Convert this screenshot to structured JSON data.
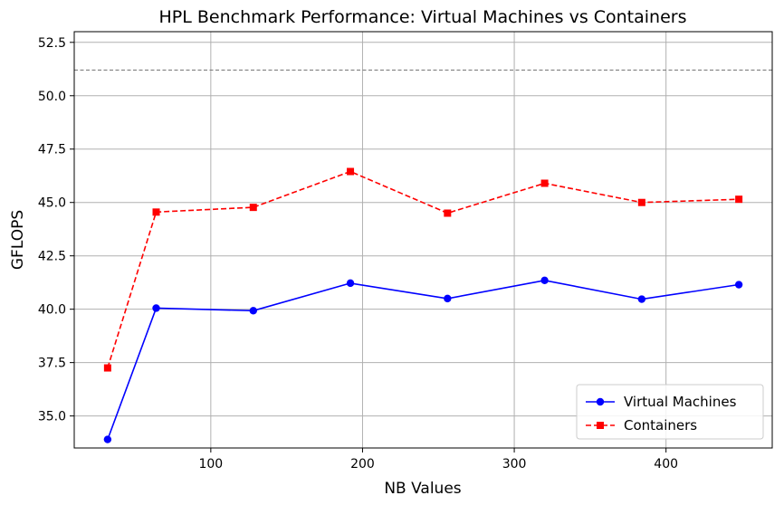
{
  "chart_data": {
    "type": "line",
    "title": "HPL Benchmark Performance: Virtual Machines vs Containers",
    "xlabel": "NB Values",
    "ylabel": "GFLOPS",
    "xlim": [
      10,
      470
    ],
    "ylim": [
      33.5,
      53.0
    ],
    "x_ticks": [
      100,
      200,
      300,
      400
    ],
    "y_ticks": [
      35.0,
      37.5,
      40.0,
      42.5,
      45.0,
      47.5,
      50.0,
      52.5
    ],
    "grid": true,
    "legend_position": "bottom-right",
    "reference_line": {
      "y": 51.2,
      "color": "#808080",
      "style": "dashed"
    },
    "x": [
      32,
      64,
      128,
      192,
      256,
      320,
      384,
      448
    ],
    "series": [
      {
        "name": "Virtual Machines",
        "color": "#0000ff",
        "marker": "circle",
        "line_style": "solid",
        "values": [
          33.9,
          40.05,
          39.93,
          41.22,
          40.5,
          41.35,
          40.47,
          41.15
        ]
      },
      {
        "name": "Containers",
        "color": "#ff0000",
        "marker": "square",
        "line_style": "dashed",
        "values": [
          37.25,
          44.55,
          44.77,
          46.45,
          44.5,
          45.9,
          45.0,
          45.15
        ]
      }
    ]
  }
}
